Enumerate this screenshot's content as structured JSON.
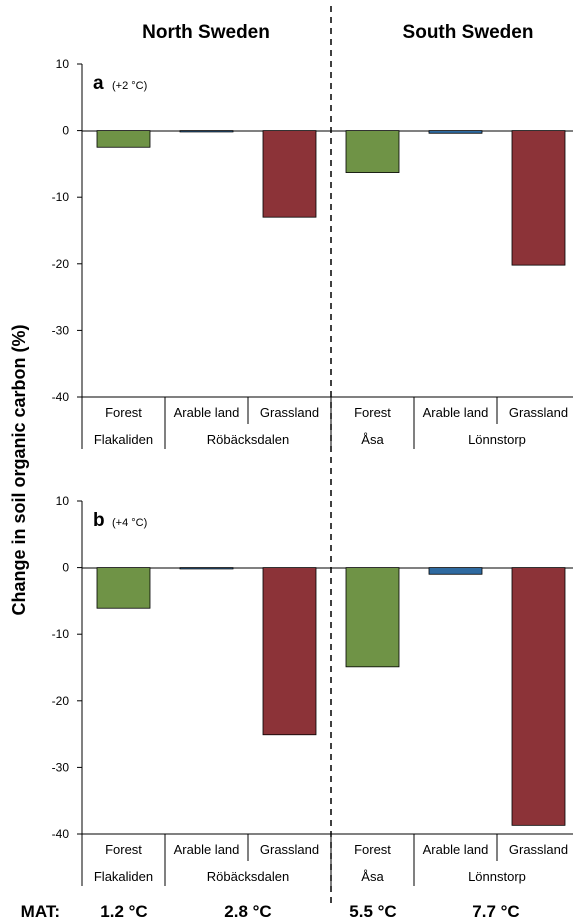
{
  "header": {
    "left": "North Sweden",
    "right": "South Sweden"
  },
  "ylabel": "Change in soil organic carbon (%)",
  "mat_label": "MAT:",
  "mat_values": [
    "1.2 °C",
    "2.8 °C",
    "5.5 °C",
    "7.7 °C"
  ],
  "colors": {
    "Forest": "#6f9346",
    "Arable land": "#2f6aa0",
    "Grassland": "#8c3338"
  },
  "chart_data": [
    {
      "type": "bar",
      "panel_letter": "a",
      "panel_note": "(+2 °C)",
      "categories": [
        "Forest",
        "Arable land",
        "Grassland",
        "Forest",
        "Arable land",
        "Grassland"
      ],
      "sites": [
        {
          "name": "Flakaliden",
          "span": 1
        },
        {
          "name": "Röbäcksdalen",
          "span": 2
        },
        {
          "name": "Åsa",
          "span": 1
        },
        {
          "name": "Lönnstorp",
          "span": 2
        }
      ],
      "values": [
        -2.5,
        -0.2,
        -13,
        -6.3,
        -0.4,
        -20.2
      ],
      "ylim": [
        -40,
        10
      ],
      "yticks": [
        10,
        0,
        -10,
        -20,
        -30,
        -40
      ]
    },
    {
      "type": "bar",
      "panel_letter": "b",
      "panel_note": "(+4 °C)",
      "categories": [
        "Forest",
        "Arable land",
        "Grassland",
        "Forest",
        "Arable land",
        "Grassland"
      ],
      "sites": [
        {
          "name": "Flakaliden",
          "span": 1
        },
        {
          "name": "Röbäcksdalen",
          "span": 2
        },
        {
          "name": "Åsa",
          "span": 1
        },
        {
          "name": "Lönnstorp",
          "span": 2
        }
      ],
      "values": [
        -6.1,
        -0.2,
        -25.1,
        -14.9,
        -1,
        -38.7
      ],
      "ylim": [
        -40,
        10
      ],
      "yticks": [
        10,
        0,
        -10,
        -20,
        -30,
        -40
      ]
    }
  ]
}
